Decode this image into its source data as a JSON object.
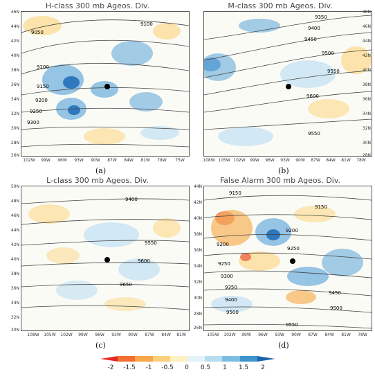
{
  "panels": [
    {
      "id": "a",
      "title": "H-class 300 mb Ageos. Div.",
      "letter": "(a)",
      "lat_labels": [
        "46N",
        "44N",
        "42N",
        "40N",
        "38N",
        "36N",
        "34N",
        "32N",
        "30N",
        "28N",
        "26N"
      ],
      "lon_labels": [
        "102W",
        "99W",
        "96W",
        "93W",
        "90W",
        "87W",
        "84W",
        "81W",
        "78W",
        "75W"
      ],
      "contour_labels": [
        "9050",
        "9100",
        "9100",
        "9150",
        "9200",
        "9250",
        "9300"
      ]
    },
    {
      "id": "b",
      "title": "M-class 300 mb Ageos. Div.",
      "letter": "(b)",
      "lat_labels": [
        "48N",
        "46N",
        "44N",
        "42N",
        "40N",
        "38N",
        "36N",
        "34N",
        "32N",
        "30N",
        "28N"
      ],
      "lon_labels": [
        "108W",
        "105W",
        "102W",
        "99W",
        "96W",
        "93W",
        "90W",
        "87W",
        "84W",
        "81W",
        "78W"
      ],
      "contour_labels": [
        "9350",
        "9400",
        "9450",
        "9500",
        "9550",
        "9600",
        "9550"
      ]
    },
    {
      "id": "c",
      "title": "L-class 300 mb Ageos. Div.",
      "letter": "(c)",
      "lat_labels": [
        "50N",
        "48N",
        "46N",
        "44N",
        "42N",
        "40N",
        "38N",
        "36N",
        "34N",
        "32N",
        "30N"
      ],
      "lon_labels": [
        "108W",
        "105W",
        "102W",
        "99W",
        "96W",
        "93W",
        "90W",
        "87W",
        "84W",
        "81W"
      ],
      "contour_labels": [
        "9400",
        "9550",
        "9600",
        "9650"
      ]
    },
    {
      "id": "d",
      "title": "False Alarm 300 mb Ageos. Div.",
      "letter": "(d)",
      "lat_labels": [
        "44N",
        "42N",
        "40N",
        "38N",
        "36N",
        "34N",
        "32N",
        "30N",
        "28N",
        "26N"
      ],
      "lon_labels": [
        "105W",
        "102W",
        "99W",
        "96W",
        "93W",
        "90W",
        "87W",
        "84W",
        "81W",
        "78W"
      ],
      "contour_labels": [
        "9150",
        "9150",
        "9200",
        "9200",
        "9250",
        "9250",
        "9300",
        "9350",
        "9400",
        "9450",
        "9500",
        "9500",
        "9550"
      ]
    }
  ],
  "colorbar": {
    "labels": [
      "-2",
      "-1.5",
      "-1",
      "-0.5",
      "0",
      "0.5",
      "1",
      "1.5",
      "2"
    ],
    "colors": [
      "#e8281f",
      "#f46e33",
      "#f7a64a",
      "#fbd07c",
      "#fdf0c2",
      "#e4f2fa",
      "#b6dcef",
      "#7cbee3",
      "#3e94cd",
      "#1b63ad"
    ]
  },
  "colors": {
    "land_bg": "#fbfbf6",
    "blue_strong": "#2f78bf",
    "blue_mid": "#7cb7e0",
    "blue_light": "#cde6f4",
    "orange_light": "#fbdd98",
    "orange_mid": "#f6b25a",
    "red": "#ec5a3a",
    "contour": "#444444"
  }
}
